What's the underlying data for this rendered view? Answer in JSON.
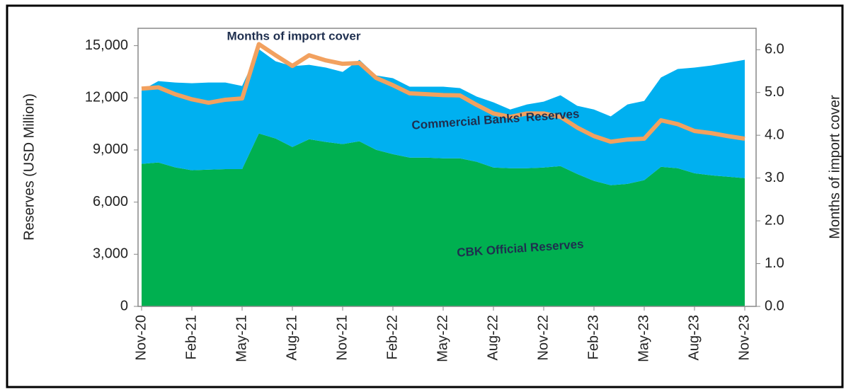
{
  "chart_data": {
    "type": "stacked-area-line",
    "categories": [
      "Nov-20",
      null,
      null,
      "Feb-21",
      null,
      null,
      "May-21",
      null,
      null,
      "Aug-21",
      null,
      null,
      "Nov-21",
      null,
      null,
      "Feb-22",
      null,
      null,
      "May-22",
      null,
      null,
      "Aug-22",
      null,
      null,
      "Nov-22",
      null,
      null,
      "Feb-23",
      null,
      null,
      "May-23",
      null,
      null,
      "Aug-23",
      null,
      null,
      "Nov-23"
    ],
    "series": [
      {
        "name": "CBK Official Reserves",
        "color": "#00b050",
        "values": [
          8200,
          8280,
          8000,
          7830,
          7870,
          7900,
          7900,
          9950,
          9660,
          9170,
          9620,
          9460,
          9340,
          9500,
          9010,
          8760,
          8560,
          8560,
          8520,
          8520,
          8320,
          7990,
          7950,
          7950,
          7990,
          8070,
          7620,
          7220,
          6970,
          7050,
          7260,
          8030,
          7950,
          7660,
          7540,
          7460,
          7380
        ]
      },
      {
        "name": "Commercial Banks' Reserves",
        "color": "#00b0f0",
        "values": [
          4230,
          4680,
          4880,
          5010,
          5010,
          4980,
          4780,
          4850,
          4440,
          4650,
          4280,
          4280,
          4150,
          4690,
          4280,
          4370,
          4080,
          4080,
          4120,
          4040,
          3750,
          3750,
          3380,
          3670,
          3790,
          4080,
          3920,
          4110,
          3960,
          4570,
          4560,
          5140,
          5710,
          6080,
          6320,
          6560,
          6810
        ]
      },
      {
        "name": "Months of import cover",
        "color": "#f2a15f",
        "axis": "y2",
        "values": [
          5.09,
          5.12,
          4.96,
          4.84,
          4.76,
          4.83,
          4.86,
          6.13,
          5.87,
          5.62,
          5.87,
          5.75,
          5.67,
          5.69,
          5.34,
          5.17,
          4.98,
          4.96,
          4.94,
          4.93,
          4.71,
          4.51,
          4.43,
          4.51,
          4.51,
          4.43,
          4.18,
          3.98,
          3.85,
          3.9,
          3.92,
          4.35,
          4.26,
          4.1,
          4.05,
          3.98,
          3.92
        ]
      }
    ],
    "y_label": "Reserves (USD Million)",
    "y2_label": "Months of import cover",
    "ylim": [
      0,
      16000
    ],
    "yticks": [
      0,
      {
        "value": 3000,
        "label": "3,000"
      },
      {
        "value": 6000,
        "label": "6,000"
      },
      {
        "value": 9000,
        "label": "9,000"
      },
      {
        "value": 12000,
        "label": "12,000"
      },
      {
        "value": 15000,
        "label": "15,000"
      }
    ],
    "y2lim": [
      0,
      6.5
    ],
    "y2ticks": [
      {
        "value": 0,
        "label": "0.0"
      },
      {
        "value": 1,
        "label": "1.0"
      },
      {
        "value": 2,
        "label": "2.0"
      },
      {
        "value": 3,
        "label": "3.0"
      },
      {
        "value": 4,
        "label": "4.0"
      },
      {
        "value": 5,
        "label": "5.0"
      },
      {
        "value": 6,
        "label": "6.0"
      }
    ],
    "grid": false
  }
}
